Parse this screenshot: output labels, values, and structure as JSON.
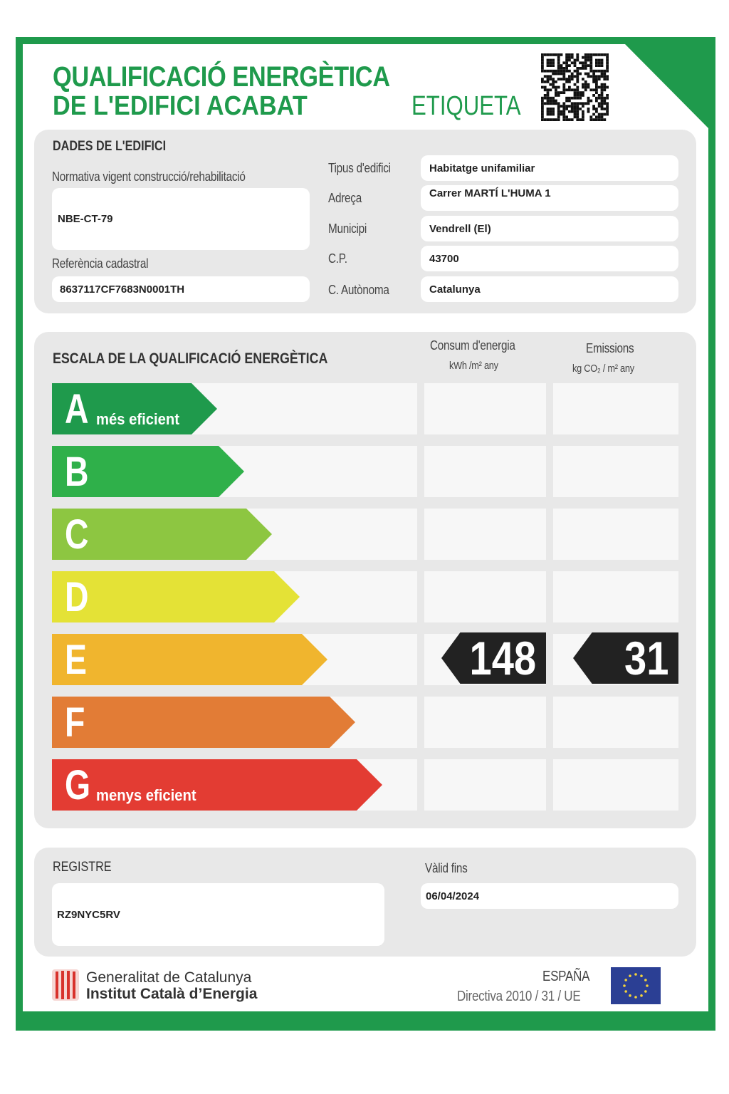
{
  "header": {
    "title_line1": "QUALIFICACIÓ ENERGÈTICA",
    "title_line2": "DE L'EDIFICI ACABAT",
    "label": "ETIQUETA",
    "qr_icon": "qr-code-icon"
  },
  "building": {
    "section_title": "DADES DE L'EDIFICI",
    "normativa_label": "Normativa vigent construcció/rehabilitació",
    "normativa_value": "NBE-CT-79",
    "referencia_label": "Referència cadastral",
    "referencia_value": "8637117CF7683N0001TH",
    "fields": [
      {
        "label": "Tipus d'edifici",
        "value": "Habitatge unifamiliar"
      },
      {
        "label": "Adreça",
        "value": "Carrer MARTÍ L'HUMA 1"
      },
      {
        "label": "Municipi",
        "value": "Vendrell (El)"
      },
      {
        "label": "C.P.",
        "value": "43700"
      },
      {
        "label": "C. Autònoma",
        "value": "Catalunya"
      }
    ]
  },
  "scale": {
    "section_title": "ESCALA DE LA QUALIFICACIÓ ENERGÈTICA",
    "consum_label": "Consum d'energia",
    "consum_unit": "kWh /m² any",
    "emissions_label": "Emissions",
    "emissions_unit": "kg CO₂ / m² any",
    "classes": [
      {
        "letter": "A",
        "sub": "més eficient",
        "color": "#1f9a4c"
      },
      {
        "letter": "B",
        "sub": "",
        "color": "#2fb04a"
      },
      {
        "letter": "C",
        "sub": "",
        "color": "#8dc641"
      },
      {
        "letter": "D",
        "sub": "",
        "color": "#e4e236"
      },
      {
        "letter": "E",
        "sub": "",
        "color": "#f0b52e"
      },
      {
        "letter": "F",
        "sub": "",
        "color": "#e27c36"
      },
      {
        "letter": "G",
        "sub": "menys eficient",
        "color": "#e33c33"
      }
    ],
    "rating_class": "E",
    "consum_value": "148",
    "emissions_value": "31"
  },
  "registry": {
    "label": "REGISTRE",
    "value": "RZ9NYC5RV",
    "valid_label": "Vàlid fins",
    "valid_value": "06/04/2024"
  },
  "footer": {
    "org_line1": "Generalitat de Catalunya",
    "org_line2": "Institut Català d’Energia",
    "country": "ESPAÑA",
    "directive": "Directiva 2010 / 31 / UE"
  }
}
